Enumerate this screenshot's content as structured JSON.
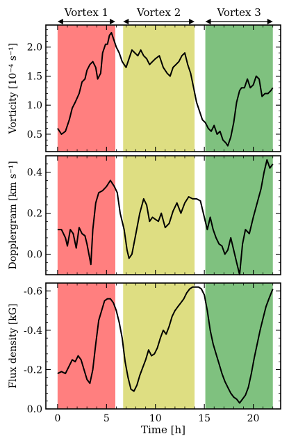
{
  "chart_data": {
    "type": "line",
    "xlabel": "Time [h]",
    "x_ticks": [
      0,
      5,
      10,
      15,
      20
    ],
    "xlim": [
      -1.2,
      22.8
    ],
    "vortices": [
      {
        "label": "Vortex 1",
        "x_start": 0.0,
        "x_end": 5.9,
        "color": "#ff7f7f"
      },
      {
        "label": "Vortex 2",
        "x_start": 6.7,
        "x_end": 14.0,
        "color": "#dede82"
      },
      {
        "label": "Vortex 3",
        "x_start": 15.1,
        "x_end": 22.0,
        "color": "#7fc17f"
      }
    ],
    "panels": [
      {
        "name": "vorticity",
        "ylabel": "Vorticity [10⁻⁴ s⁻¹]",
        "ylim": [
          0.2,
          2.38
        ],
        "y_ticks": [
          0.5,
          1.0,
          1.5,
          2.0
        ],
        "y_tick_labels": [
          "0.5",
          "1.0",
          "1.5",
          "2.0"
        ],
        "inverted": false,
        "series": {
          "x": [
            0.0,
            0.4,
            0.8,
            1.2,
            1.5,
            1.8,
            2.2,
            2.5,
            2.8,
            3.0,
            3.3,
            3.6,
            3.9,
            4.1,
            4.4,
            4.6,
            4.9,
            5.1,
            5.3,
            5.5,
            5.8,
            6.0,
            6.3,
            6.6,
            6.8,
            7.0,
            7.3,
            7.6,
            7.9,
            8.2,
            8.5,
            8.8,
            9.1,
            9.4,
            9.7,
            10.0,
            10.4,
            10.8,
            11.2,
            11.5,
            11.8,
            12.1,
            12.4,
            12.7,
            13.0,
            13.3,
            13.6,
            13.9,
            14.2,
            14.5,
            14.8,
            15.1,
            15.4,
            15.7,
            16.0,
            16.3,
            16.6,
            16.9,
            17.2,
            17.4,
            17.7,
            18.0,
            18.3,
            18.6,
            18.8,
            19.1,
            19.4,
            19.7,
            20.0,
            20.3,
            20.6,
            20.9,
            21.2,
            21.5,
            21.8,
            22.0
          ],
          "y": [
            0.6,
            0.5,
            0.55,
            0.75,
            0.95,
            1.05,
            1.2,
            1.4,
            1.45,
            1.6,
            1.7,
            1.75,
            1.65,
            1.45,
            1.55,
            1.9,
            2.05,
            2.05,
            2.2,
            2.25,
            2.1,
            2.0,
            1.9,
            1.75,
            1.7,
            1.65,
            1.8,
            1.95,
            1.9,
            1.85,
            1.95,
            1.85,
            1.8,
            1.7,
            1.75,
            1.8,
            1.85,
            1.65,
            1.55,
            1.5,
            1.65,
            1.7,
            1.75,
            1.85,
            1.9,
            1.7,
            1.55,
            1.3,
            1.05,
            0.9,
            0.75,
            0.7,
            0.6,
            0.55,
            0.65,
            0.5,
            0.55,
            0.4,
            0.35,
            0.3,
            0.45,
            0.7,
            1.05,
            1.25,
            1.3,
            1.3,
            1.45,
            1.3,
            1.35,
            1.5,
            1.45,
            1.15,
            1.2,
            1.2,
            1.25,
            1.3
          ]
        }
      },
      {
        "name": "dopplergram",
        "ylabel": "Dopplergram [km s⁻¹]",
        "ylim": [
          -0.1,
          0.48
        ],
        "y_ticks": [
          0.0,
          0.2,
          0.4
        ],
        "y_tick_labels": [
          "0.0",
          "0.2",
          "0.4"
        ],
        "inverted": false,
        "series": {
          "x": [
            0.0,
            0.4,
            0.8,
            1.0,
            1.3,
            1.6,
            1.9,
            2.2,
            2.5,
            2.8,
            3.0,
            3.2,
            3.4,
            3.6,
            3.9,
            4.2,
            4.6,
            5.0,
            5.4,
            5.8,
            6.1,
            6.4,
            6.8,
            7.1,
            7.3,
            7.6,
            8.0,
            8.4,
            8.8,
            9.1,
            9.4,
            9.7,
            10.0,
            10.3,
            10.6,
            11.0,
            11.4,
            11.8,
            12.2,
            12.6,
            13.0,
            13.4,
            13.8,
            14.2,
            14.6,
            15.0,
            15.3,
            15.6,
            15.9,
            16.2,
            16.5,
            16.8,
            17.1,
            17.4,
            17.7,
            18.0,
            18.3,
            18.6,
            18.9,
            19.2,
            19.6,
            20.0,
            20.4,
            20.8,
            21.1,
            21.4,
            21.7,
            22.0
          ],
          "y": [
            0.12,
            0.12,
            0.08,
            0.04,
            0.12,
            0.1,
            0.03,
            0.13,
            0.1,
            0.09,
            0.05,
            0.0,
            -0.05,
            0.12,
            0.25,
            0.3,
            0.31,
            0.33,
            0.36,
            0.33,
            0.3,
            0.2,
            0.12,
            0.02,
            -0.02,
            0.0,
            0.1,
            0.2,
            0.27,
            0.24,
            0.16,
            0.18,
            0.17,
            0.16,
            0.2,
            0.13,
            0.15,
            0.21,
            0.25,
            0.2,
            0.25,
            0.28,
            0.27,
            0.27,
            0.26,
            0.18,
            0.12,
            0.18,
            0.12,
            0.08,
            0.05,
            0.04,
            0.0,
            0.02,
            0.08,
            0.02,
            -0.04,
            -0.1,
            0.05,
            0.12,
            0.1,
            0.18,
            0.25,
            0.32,
            0.4,
            0.46,
            0.42,
            0.44
          ]
        }
      },
      {
        "name": "flux-density",
        "ylabel": "Flux density [kG]",
        "ylim": [
          0.0,
          -0.64
        ],
        "y_ticks": [
          0.0,
          -0.2,
          -0.4,
          -0.6
        ],
        "y_tick_labels": [
          "0.0",
          "-0.2",
          "-0.4",
          "-0.6"
        ],
        "inverted": true,
        "series": {
          "x": [
            0.0,
            0.4,
            0.8,
            1.2,
            1.5,
            1.8,
            2.1,
            2.4,
            2.7,
            3.0,
            3.3,
            3.6,
            3.9,
            4.2,
            4.5,
            4.8,
            5.1,
            5.4,
            5.7,
            6.0,
            6.3,
            6.6,
            6.9,
            7.2,
            7.5,
            7.8,
            8.1,
            8.4,
            8.7,
            9.0,
            9.3,
            9.6,
            9.9,
            10.2,
            10.5,
            10.8,
            11.1,
            11.4,
            11.7,
            12.0,
            12.3,
            12.6,
            12.9,
            13.2,
            13.5,
            13.8,
            14.1,
            14.4,
            14.7,
            15.0,
            15.3,
            15.6,
            15.9,
            16.2,
            16.5,
            16.8,
            17.1,
            17.4,
            17.7,
            18.0,
            18.3,
            18.6,
            18.9,
            19.2,
            19.5,
            19.8,
            20.1,
            20.4,
            20.7,
            21.0,
            21.3,
            21.6,
            22.0
          ],
          "y": [
            -0.18,
            -0.19,
            -0.18,
            -0.22,
            -0.25,
            -0.24,
            -0.27,
            -0.25,
            -0.2,
            -0.15,
            -0.13,
            -0.2,
            -0.33,
            -0.45,
            -0.5,
            -0.55,
            -0.56,
            -0.56,
            -0.54,
            -0.5,
            -0.44,
            -0.36,
            -0.24,
            -0.16,
            -0.1,
            -0.09,
            -0.12,
            -0.17,
            -0.21,
            -0.25,
            -0.3,
            -0.27,
            -0.28,
            -0.31,
            -0.36,
            -0.4,
            -0.38,
            -0.42,
            -0.47,
            -0.5,
            -0.52,
            -0.54,
            -0.56,
            -0.59,
            -0.61,
            -0.62,
            -0.62,
            -0.62,
            -0.61,
            -0.58,
            -0.5,
            -0.4,
            -0.33,
            -0.28,
            -0.23,
            -0.18,
            -0.14,
            -0.11,
            -0.08,
            -0.06,
            -0.05,
            -0.03,
            -0.05,
            -0.07,
            -0.11,
            -0.18,
            -0.26,
            -0.33,
            -0.4,
            -0.46,
            -0.52,
            -0.56,
            -0.61
          ]
        }
      }
    ]
  }
}
